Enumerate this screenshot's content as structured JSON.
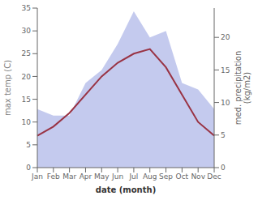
{
  "chart_data": {
    "type": "line",
    "categories": [
      "Jan",
      "Feb",
      "Mar",
      "Apr",
      "May",
      "Jun",
      "Jul",
      "Aug",
      "Sep",
      "Oct",
      "Nov",
      "Dec"
    ],
    "series": [
      {
        "type": "area",
        "color": "#b0b8e8",
        "axis": "y2",
        "values": [
          9,
          8,
          8,
          13,
          15,
          19,
          24,
          20,
          21,
          13,
          12,
          9
        ]
      },
      {
        "type": "line",
        "color": "#993344",
        "values": [
          7,
          9,
          12,
          16,
          20,
          23,
          25,
          26,
          22,
          16,
          10,
          7
        ]
      }
    ],
    "xlabel": "date (month)",
    "ylabel": "max temp (C)",
    "y2label": "med. precipitation\n(kg/m2)",
    "ylim": [
      0,
      35
    ],
    "yticks": [
      0,
      5,
      10,
      15,
      20,
      25,
      30,
      35
    ],
    "y2lim": [
      0,
      24.5
    ],
    "y2ticks": [
      0,
      5,
      10,
      15,
      20
    ],
    "grid": false
  }
}
